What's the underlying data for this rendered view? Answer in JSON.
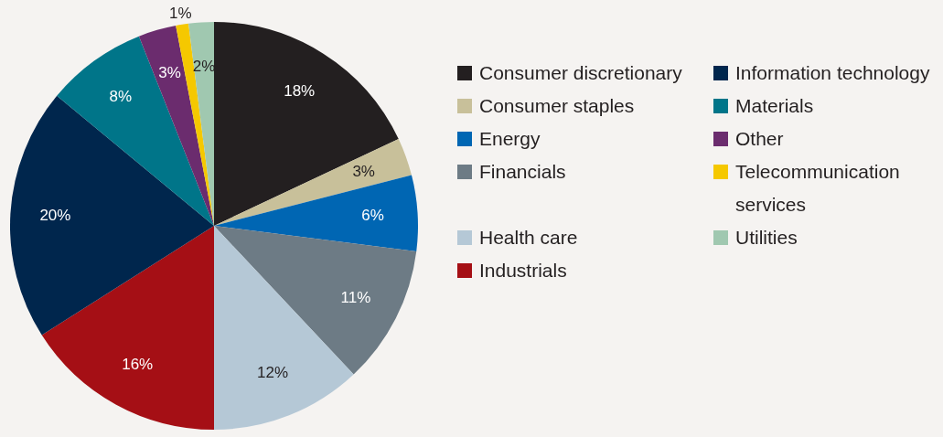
{
  "chart_data": {
    "type": "pie",
    "categories": [
      "Consumer discretionary",
      "Consumer staples",
      "Energy",
      "Financials",
      "Health care",
      "Industrials",
      "Information technology",
      "Materials",
      "Other",
      "Telecommunication services",
      "Utilities"
    ],
    "values": [
      18,
      3,
      6,
      11,
      12,
      16,
      20,
      8,
      3,
      1,
      2
    ],
    "value_labels": [
      "18%",
      "3%",
      "6%",
      "11%",
      "12%",
      "16%",
      "20%",
      "8%",
      "3%",
      "1%",
      "2%"
    ],
    "colors": [
      "#231f20",
      "#c8c09a",
      "#0066b3",
      "#6d7b85",
      "#b5c8d6",
      "#a50f15",
      "#00264d",
      "#007589",
      "#6b2c6e",
      "#f5c800",
      "#a0c8b0"
    ],
    "legend": "right"
  }
}
